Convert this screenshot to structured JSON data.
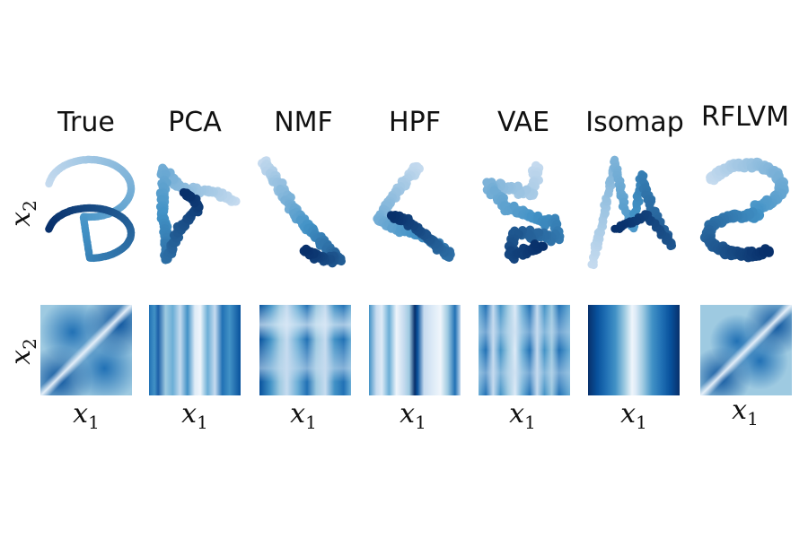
{
  "columns": [
    {
      "id": "true",
      "title": "True"
    },
    {
      "id": "pca",
      "title": "PCA"
    },
    {
      "id": "nmf",
      "title": "NMF"
    },
    {
      "id": "hpf",
      "title": "HPF"
    },
    {
      "id": "vae",
      "title": "VAE"
    },
    {
      "id": "isomap",
      "title": "Isomap"
    },
    {
      "id": "rflvm",
      "title": "RFLVM"
    }
  ],
  "axis_labels": {
    "x_var": "x",
    "x_sub": "1",
    "y_var": "x",
    "y_sub": "2"
  },
  "colormap": {
    "name": "Blues",
    "light": "#c6dbef",
    "mid": "#4292c6",
    "dark": "#08306b"
  }
}
